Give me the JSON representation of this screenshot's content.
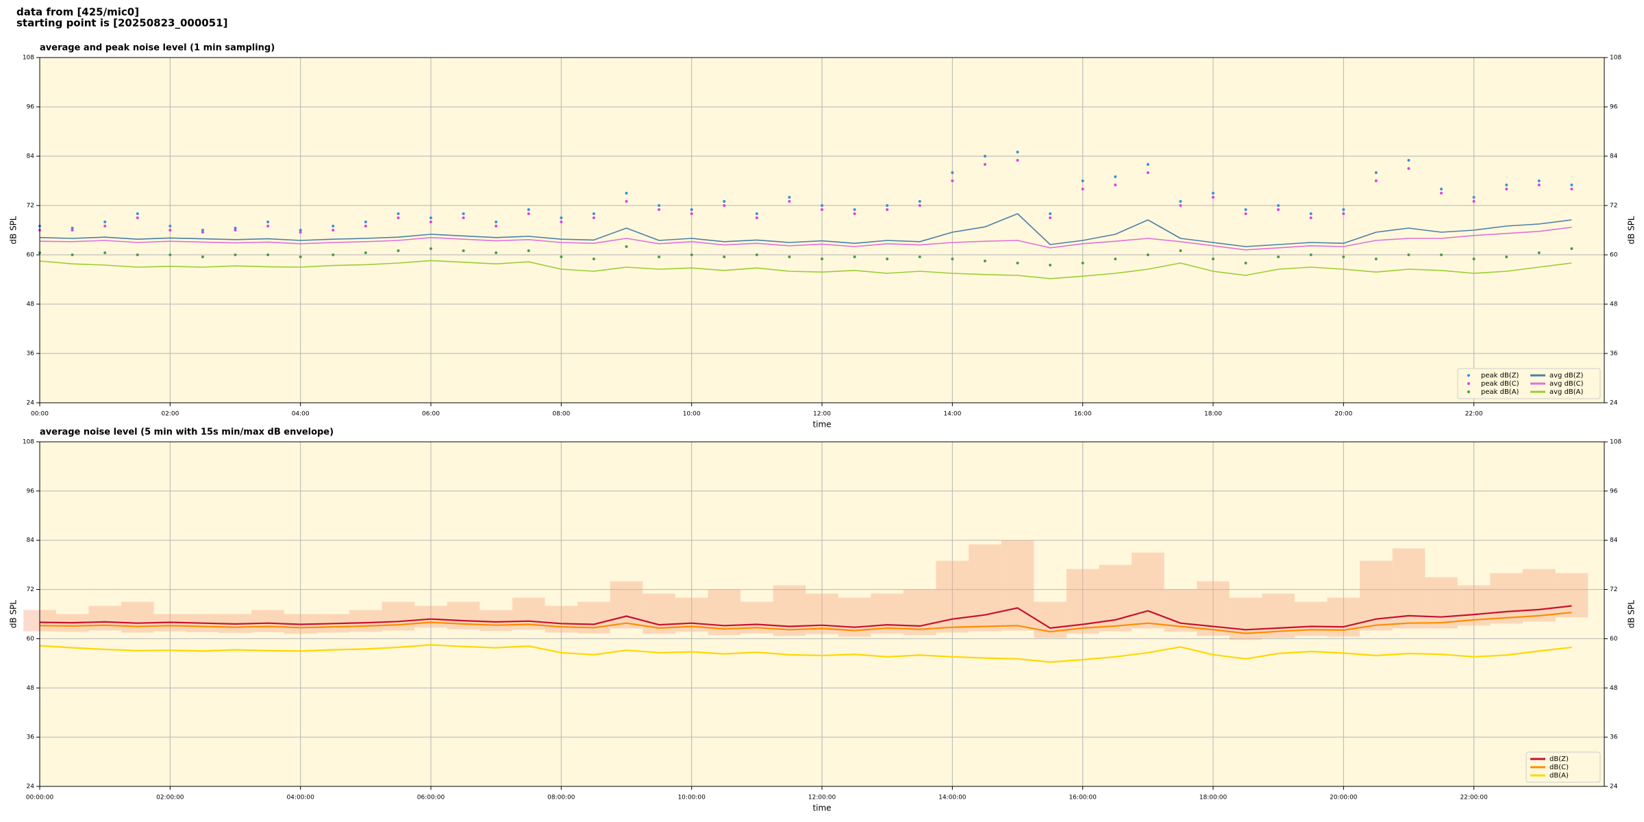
{
  "header": {
    "line1": "data from [425/mic0]",
    "line2": "starting point is [20250823_000051]"
  },
  "chart_data": [
    {
      "type": "line",
      "title": "average and peak noise level (1 min sampling)",
      "xlabel": "time",
      "ylabel": "dB SPL",
      "y2label": "dB SPL",
      "xlim": [
        0,
        24
      ],
      "ylim": [
        24,
        108
      ],
      "y2lim": [
        24,
        108
      ],
      "grid": true,
      "background": "#fff8dc",
      "legend": "lower right",
      "legend_columns": 2,
      "xticks": [
        {
          "value": 0,
          "label": "00:00"
        },
        {
          "value": 2,
          "label": "02:00"
        },
        {
          "value": 4,
          "label": "04:00"
        },
        {
          "value": 6,
          "label": "06:00"
        },
        {
          "value": 8,
          "label": "08:00"
        },
        {
          "value": 10,
          "label": "10:00"
        },
        {
          "value": 12,
          "label": "12:00"
        },
        {
          "value": 14,
          "label": "14:00"
        },
        {
          "value": 16,
          "label": "16:00"
        },
        {
          "value": 18,
          "label": "18:00"
        },
        {
          "value": 20,
          "label": "20:00"
        },
        {
          "value": 22,
          "label": "22:00"
        }
      ],
      "yticks": [
        24,
        36,
        48,
        60,
        72,
        84,
        96,
        108
      ],
      "y2ticks": [
        24,
        36,
        48,
        60,
        72,
        84,
        96,
        108
      ],
      "x": [
        0,
        0.5,
        1,
        1.5,
        2,
        2.5,
        3,
        3.5,
        4,
        4.5,
        5,
        5.5,
        6,
        6.5,
        7,
        7.5,
        8,
        8.5,
        9,
        9.5,
        10,
        10.5,
        11,
        11.5,
        12,
        12.5,
        13,
        13.5,
        14,
        14.5,
        15,
        15.5,
        16,
        16.5,
        17,
        17.5,
        18,
        18.5,
        19,
        19.5,
        20,
        20.5,
        21,
        21.5,
        22,
        22.5,
        23,
        23.5
      ],
      "series": [
        {
          "name": "peak dB(Z)",
          "kind": "points",
          "color": "#3a8fd9",
          "values": [
            67,
            66.5,
            68,
            70,
            67,
            66,
            66.5,
            68,
            66,
            67,
            68,
            70,
            69,
            70,
            68,
            71,
            69,
            70,
            75,
            72,
            71,
            73,
            70,
            74,
            72,
            71,
            72,
            73,
            80,
            84,
            85,
            70,
            78,
            79,
            82,
            73,
            75,
            71,
            72,
            70,
            71,
            80,
            83,
            76,
            74,
            77,
            78,
            77
          ]
        },
        {
          "name": "peak dB(C)",
          "kind": "points",
          "color": "#e040e0",
          "values": [
            66,
            66,
            67,
            69,
            66,
            65.5,
            66,
            67,
            65.5,
            66,
            67,
            69,
            68,
            69,
            67,
            70,
            68,
            69,
            73,
            71,
            70,
            72,
            69,
            73,
            71,
            70,
            71,
            72,
            78,
            82,
            83,
            69,
            76,
            77,
            80,
            72,
            74,
            70,
            71,
            69,
            70,
            78,
            81,
            75,
            73,
            76,
            77,
            76
          ]
        },
        {
          "name": "peak dB(A)",
          "kind": "points",
          "color": "#4c9a4c",
          "values": [
            60.5,
            60,
            60.5,
            60,
            60,
            59.5,
            60,
            60,
            59.5,
            60,
            60.5,
            61,
            61.5,
            61,
            60.5,
            61,
            59.5,
            59,
            62,
            59.5,
            60,
            59.5,
            60,
            59.5,
            59,
            59.5,
            59,
            59.5,
            59,
            58.5,
            58,
            57.5,
            58,
            59,
            60,
            61,
            59,
            58,
            59.5,
            60,
            59.5,
            59,
            60,
            60,
            59,
            59.5,
            60.5,
            61.5
          ]
        },
        {
          "name": "avg dB(Z)",
          "kind": "line",
          "color": "#4a7fa8",
          "values": [
            64.2,
            64.0,
            64.3,
            63.8,
            64.1,
            63.9,
            63.7,
            63.9,
            63.5,
            63.8,
            64.0,
            64.3,
            65.0,
            64.6,
            64.2,
            64.5,
            63.8,
            63.6,
            66.5,
            63.5,
            64.0,
            63.2,
            63.6,
            63.0,
            63.4,
            62.8,
            63.5,
            63.2,
            65.5,
            66.8,
            70.0,
            62.5,
            63.5,
            65.0,
            68.5,
            64.0,
            63.0,
            62.0,
            62.5,
            63.0,
            62.8,
            65.5,
            66.5,
            65.5,
            66.0,
            67.0,
            67.5,
            68.5
          ]
        },
        {
          "name": "avg dB(C)",
          "kind": "line",
          "color": "#e070d8",
          "values": [
            63.3,
            63.2,
            63.5,
            63.0,
            63.3,
            63.1,
            62.9,
            63.1,
            62.7,
            63.0,
            63.2,
            63.5,
            64.2,
            63.8,
            63.4,
            63.7,
            63.0,
            62.8,
            64.0,
            62.7,
            63.2,
            62.4,
            62.8,
            62.2,
            62.6,
            62.0,
            62.7,
            62.4,
            63.0,
            63.3,
            63.5,
            61.7,
            62.7,
            63.3,
            64.0,
            63.2,
            62.2,
            61.2,
            61.7,
            62.2,
            62.0,
            63.5,
            64.0,
            64.0,
            64.7,
            65.2,
            65.7,
            66.7
          ]
        },
        {
          "name": "avg dB(A)",
          "kind": "line",
          "color": "#9acd32",
          "values": [
            58.5,
            57.8,
            57.5,
            57.0,
            57.2,
            57.0,
            57.3,
            57.1,
            57.0,
            57.4,
            57.6,
            58.0,
            58.6,
            58.2,
            57.8,
            58.3,
            56.5,
            56.0,
            57.0,
            56.5,
            56.8,
            56.2,
            56.8,
            56.0,
            55.8,
            56.2,
            55.5,
            56.0,
            55.5,
            55.2,
            55.0,
            54.2,
            54.8,
            55.5,
            56.5,
            58.0,
            56.0,
            55.0,
            56.5,
            57.0,
            56.5,
            55.8,
            56.5,
            56.2,
            55.5,
            56.0,
            57.0,
            58.0
          ]
        }
      ]
    },
    {
      "type": "line",
      "title": "average noise level (5 min with 15s min/max dB envelope)",
      "xlabel": "time",
      "ylabel": "dB SPL",
      "y2label": "dB SPL",
      "xlim": [
        0,
        24
      ],
      "ylim": [
        24,
        108
      ],
      "y2lim": [
        24,
        108
      ],
      "grid": true,
      "background": "#fff8dc",
      "legend": "lower right",
      "legend_columns": 1,
      "xticks": [
        {
          "value": 0,
          "label": "00:00:00"
        },
        {
          "value": 2,
          "label": "02:00:00"
        },
        {
          "value": 4,
          "label": "04:00:00"
        },
        {
          "value": 6,
          "label": "06:00:00"
        },
        {
          "value": 8,
          "label": "08:00:00"
        },
        {
          "value": 10,
          "label": "10:00:00"
        },
        {
          "value": 12,
          "label": "12:00:00"
        },
        {
          "value": 14,
          "label": "14:00:00"
        },
        {
          "value": 16,
          "label": "16:00:00"
        },
        {
          "value": 18,
          "label": "18:00:00"
        },
        {
          "value": 20,
          "label": "20:00:00"
        },
        {
          "value": 22,
          "label": "22:00:00"
        }
      ],
      "yticks": [
        24,
        36,
        48,
        60,
        72,
        84,
        96,
        108
      ],
      "y2ticks": [
        24,
        36,
        48,
        60,
        72,
        84,
        96,
        108
      ],
      "x": [
        0,
        0.5,
        1,
        1.5,
        2,
        2.5,
        3,
        3.5,
        4,
        4.5,
        5,
        5.5,
        6,
        6.5,
        7,
        7.5,
        8,
        8.5,
        9,
        9.5,
        10,
        10.5,
        11,
        11.5,
        12,
        12.5,
        13,
        13.5,
        14,
        14.5,
        15,
        15.5,
        16,
        16.5,
        17,
        17.5,
        18,
        18.5,
        19,
        19.5,
        20,
        20.5,
        21,
        21.5,
        22,
        22.5,
        23,
        23.5
      ],
      "envelope": {
        "color": "#f4a582",
        "upper": [
          67,
          66,
          68,
          69,
          66,
          66,
          66,
          67,
          66,
          66,
          67,
          69,
          68,
          69,
          67,
          70,
          68,
          69,
          74,
          71,
          70,
          72,
          69,
          73,
          71,
          70,
          71,
          72,
          79,
          83,
          84,
          69,
          77,
          78,
          81,
          72,
          74,
          70,
          71,
          69,
          70,
          79,
          82,
          75,
          73,
          76,
          77,
          76
        ],
        "lower": [
          61.8,
          61.7,
          62,
          61.5,
          61.8,
          61.6,
          61.4,
          61.6,
          61.2,
          61.5,
          61.7,
          62,
          62.7,
          62.3,
          61.9,
          62.2,
          61.5,
          61.3,
          62.5,
          61.2,
          61.7,
          60.9,
          61.3,
          60.7,
          61.1,
          60.5,
          61.2,
          60.9,
          61.5,
          61.8,
          62,
          60.2,
          61.2,
          61.8,
          62.5,
          61.7,
          60.7,
          59.7,
          60.2,
          60.7,
          60.5,
          62,
          62.5,
          62.5,
          63.2,
          63.7,
          64.2,
          65.2
        ]
      },
      "series": [
        {
          "name": "dB(Z)",
          "kind": "line",
          "color": "#c8102e",
          "values": [
            64.0,
            63.9,
            64.1,
            63.8,
            64.0,
            63.8,
            63.6,
            63.8,
            63.5,
            63.7,
            63.9,
            64.2,
            64.8,
            64.4,
            64.1,
            64.3,
            63.7,
            63.5,
            65.5,
            63.4,
            63.8,
            63.2,
            63.5,
            63.0,
            63.3,
            62.8,
            63.4,
            63.1,
            64.8,
            65.8,
            67.5,
            62.6,
            63.5,
            64.6,
            66.8,
            63.8,
            63.0,
            62.2,
            62.6,
            63.0,
            62.9,
            64.8,
            65.6,
            65.3,
            65.9,
            66.6,
            67.1,
            68.0
          ]
        },
        {
          "name": "dB(C)",
          "kind": "line",
          "color": "#ff8c00",
          "values": [
            63.2,
            63.1,
            63.3,
            63.0,
            63.2,
            63.0,
            62.8,
            63.0,
            62.7,
            62.9,
            63.1,
            63.4,
            64.0,
            63.6,
            63.3,
            63.5,
            62.9,
            62.7,
            63.8,
            62.6,
            63.0,
            62.4,
            62.7,
            62.2,
            62.5,
            62.0,
            62.6,
            62.3,
            62.8,
            63.0,
            63.2,
            61.7,
            62.6,
            63.1,
            63.8,
            63.0,
            62.2,
            61.3,
            61.8,
            62.2,
            62.1,
            63.3,
            63.8,
            63.9,
            64.6,
            65.1,
            65.6,
            66.4
          ]
        },
        {
          "name": "dB(A)",
          "kind": "line",
          "color": "#ffd700",
          "values": [
            58.3,
            57.8,
            57.4,
            57.1,
            57.2,
            57.0,
            57.3,
            57.1,
            57.0,
            57.3,
            57.5,
            57.9,
            58.5,
            58.1,
            57.8,
            58.2,
            56.6,
            56.1,
            57.2,
            56.6,
            56.8,
            56.3,
            56.7,
            56.1,
            55.9,
            56.2,
            55.6,
            56.0,
            55.6,
            55.3,
            55.1,
            54.3,
            54.9,
            55.6,
            56.6,
            58.0,
            56.1,
            55.1,
            56.4,
            56.9,
            56.5,
            55.9,
            56.4,
            56.2,
            55.6,
            56.0,
            57.0,
            57.9
          ]
        }
      ]
    }
  ]
}
